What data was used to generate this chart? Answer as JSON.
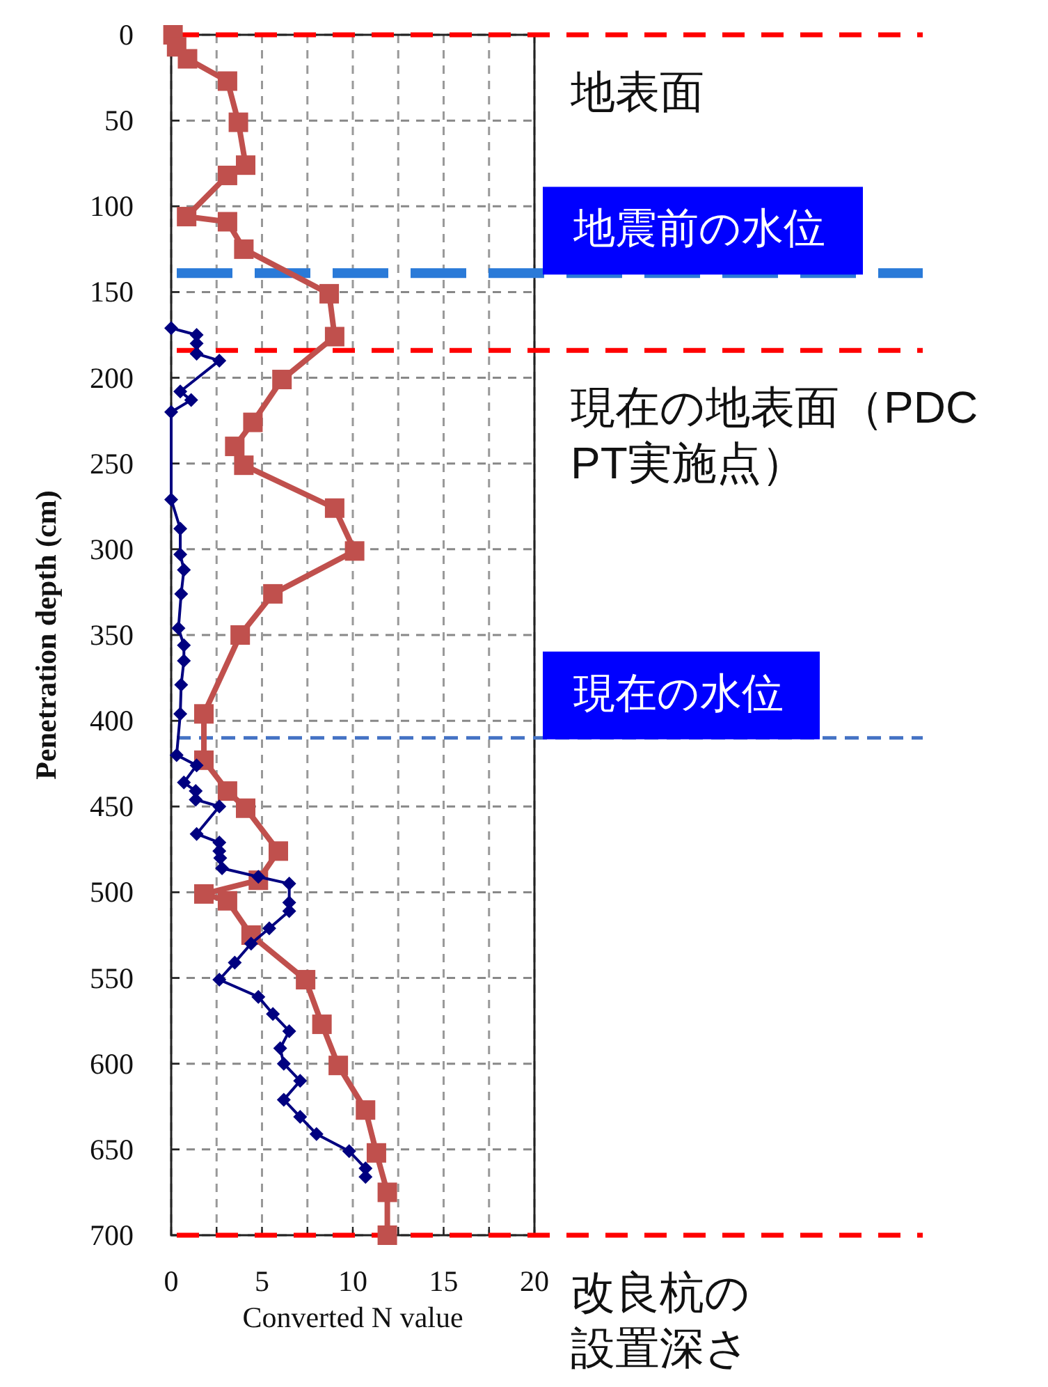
{
  "chart_data": {
    "type": "line",
    "xlabel": "Converted N value",
    "ylabel": "Penetration depth (cm)",
    "xlim": [
      0,
      20
    ],
    "ylim": [
      700,
      0
    ],
    "xticks": [
      0,
      {
        "value": 2.5,
        "label": null
      },
      5,
      {
        "value": 7.5,
        "label": null
      },
      10,
      {
        "value": 12.5,
        "label": null
      },
      15,
      {
        "value": 17.5,
        "label": null
      },
      20
    ],
    "yticks": [
      0,
      50,
      100,
      150,
      200,
      250,
      300,
      350,
      400,
      450,
      500,
      550,
      600,
      650,
      700
    ],
    "grid": true,
    "line_style": "solid",
    "series": [
      {
        "color": "#c0504d",
        "marker": "square",
        "x": [
          0.1,
          0.3,
          0.9,
          3.1,
          3.7,
          4.1,
          3.1,
          0.85,
          3.1,
          4.0,
          8.7,
          9.0,
          6.1,
          4.5,
          3.5,
          4.0,
          9.0,
          10.1,
          5.6,
          3.8,
          1.8,
          1.8,
          3.1,
          4.1,
          5.9,
          4.8,
          1.8,
          3.1,
          4.4,
          7.4,
          8.3,
          9.2,
          10.7,
          11.3,
          11.9,
          11.9
        ],
        "values": [
          0,
          7,
          14,
          27,
          51,
          76,
          82,
          106,
          109,
          125,
          151,
          176,
          201,
          226,
          240,
          251,
          276,
          301,
          326,
          350,
          396,
          423,
          441,
          451,
          476,
          493,
          501,
          505,
          525,
          551,
          577,
          601,
          627,
          652,
          675,
          700
        ]
      },
      {
        "color": "#000080",
        "marker": "diamond",
        "x": [
          0.0,
          1.4,
          1.4,
          1.4,
          2.65,
          0.5,
          1.1,
          0.0,
          0.0,
          0.5,
          0.5,
          0.7,
          0.55,
          0.4,
          0.7,
          0.7,
          0.55,
          0.5,
          0.3,
          1.4,
          0.7,
          1.35,
          1.35,
          2.65,
          1.4,
          2.65,
          2.65,
          2.7,
          2.8,
          4.8,
          6.5,
          6.5,
          6.5,
          5.4,
          4.4,
          3.5,
          2.65,
          4.8,
          5.6,
          6.5,
          6.0,
          6.2,
          7.1,
          6.2,
          7.1,
          8.0,
          9.8,
          10.7,
          10.7
        ],
        "values": [
          171,
          175,
          180,
          186,
          190,
          208,
          213,
          220,
          271,
          288,
          303,
          312,
          326,
          346,
          356,
          365,
          379,
          396,
          420,
          426,
          436,
          441,
          446,
          450,
          466,
          471,
          476,
          480,
          486,
          491,
          495,
          506,
          511,
          521,
          530,
          541,
          551,
          561,
          571,
          581,
          591,
          600,
          610,
          621,
          631,
          641,
          651,
          661,
          666
        ]
      }
    ],
    "ref_lines": [
      {
        "axis": "y",
        "value": 0,
        "label": "地表面",
        "color": "#ff0000",
        "line_style": "dashed"
      },
      {
        "axis": "y",
        "value": 139,
        "label": "地震前の水位",
        "color": "#2a7ad8",
        "line_style": "dashed"
      },
      {
        "axis": "y",
        "value": 184,
        "label": "現在の地表面（PDCPT実施点）",
        "color": "#ff0000",
        "line_style": "dashed"
      },
      {
        "axis": "y",
        "value": 410,
        "label": "現在の水位",
        "color": "#4472c4",
        "line_style": "dashed"
      },
      {
        "axis": "y",
        "value": 700,
        "label": "改良杭の設置深さ",
        "color": "#ff0000",
        "line_style": "dashed"
      }
    ]
  }
}
